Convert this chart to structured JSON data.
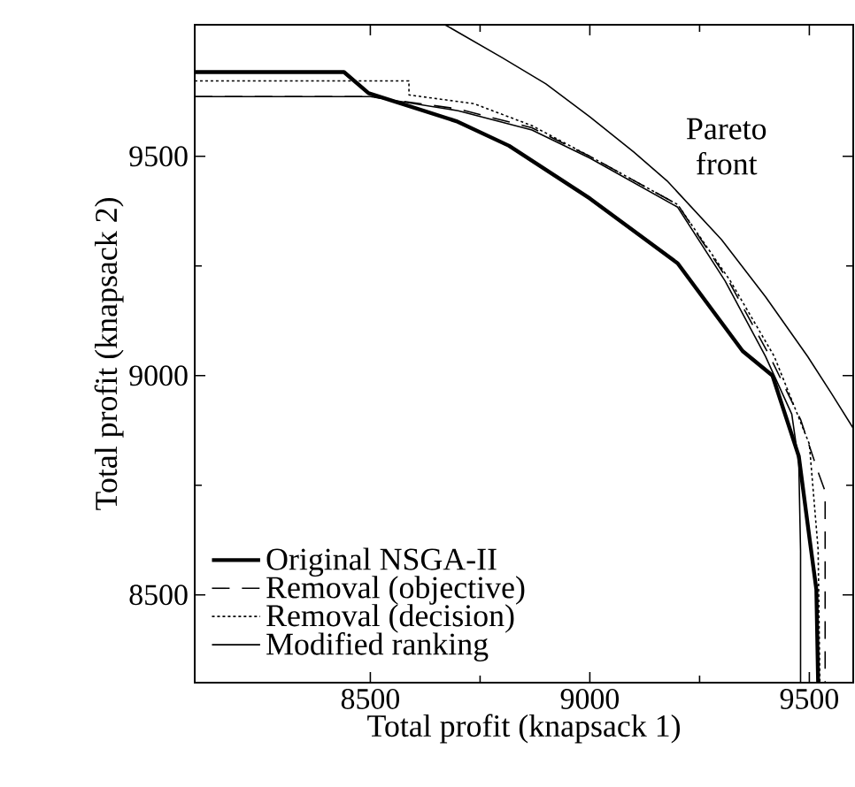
{
  "chart_data": {
    "type": "line",
    "xlabel": "Total profit (knapsack 1)",
    "ylabel": "Total profit (knapsack 2)",
    "xlim": [
      8100,
      9600
    ],
    "ylim": [
      8300,
      9800
    ],
    "xticks": [
      8500,
      9000,
      9500
    ],
    "yticks": [
      8500,
      9000,
      9500
    ],
    "grid": false,
    "legend": "bottom left",
    "marker": "none",
    "series": [
      {
        "name": "Original NSGA-II",
        "color": "#000000",
        "line_style": "solid",
        "x": [
          8100,
          8440,
          8496,
          8696,
          8816,
          9000,
          9200,
          9348,
          9416,
          9476,
          9500,
          9516,
          9520
        ],
        "values": [
          9692,
          9692,
          9644,
          9580,
          9524,
          9404,
          9256,
          9056,
          9000,
          8816,
          8632,
          8512,
          8300
        ]
      },
      {
        "name": "Removal (objective)",
        "color": "#000000",
        "line_style": "dashed",
        "x": [
          8100,
          8500,
          8700,
          8868,
          9000,
          9200,
          9316,
          9410,
          9480,
          9520,
          9536,
          9536
        ],
        "values": [
          9636,
          9636,
          9608,
          9565,
          9500,
          9390,
          9216,
          9044,
          8900,
          8780,
          8736,
          8300
        ]
      },
      {
        "name": "Removal (decision)",
        "color": "#000000",
        "line_style": "dotted",
        "x": [
          8100,
          8588,
          8588,
          8736,
          8868,
          9000,
          9200,
          9320,
          9420,
          9500,
          9520,
          9524
        ],
        "values": [
          9672,
          9672,
          9640,
          9620,
          9570,
          9500,
          9390,
          9216,
          9044,
          8844,
          8604,
          8300
        ]
      },
      {
        "name": "Modified ranking",
        "color": "#000000",
        "line_style": "solid",
        "x": [
          8100,
          8500,
          8700,
          8868,
          9000,
          9200,
          9308,
          9400,
          9460,
          9476,
          9480,
          9480
        ],
        "values": [
          9636,
          9636,
          9604,
          9560,
          9496,
          9384,
          9216,
          9044,
          8912,
          8800,
          8600,
          8300
        ]
      },
      {
        "name": "Pareto front",
        "color": "#000000",
        "line_style": "solid",
        "x": [
          8670,
          8800,
          8900,
          9000,
          9100,
          9176,
          9300,
          9400,
          9496,
          9550,
          9600
        ],
        "values": [
          9800,
          9725,
          9665,
          9590,
          9510,
          9444,
          9310,
          9180,
          9044,
          8960,
          8880
        ]
      }
    ]
  }
}
